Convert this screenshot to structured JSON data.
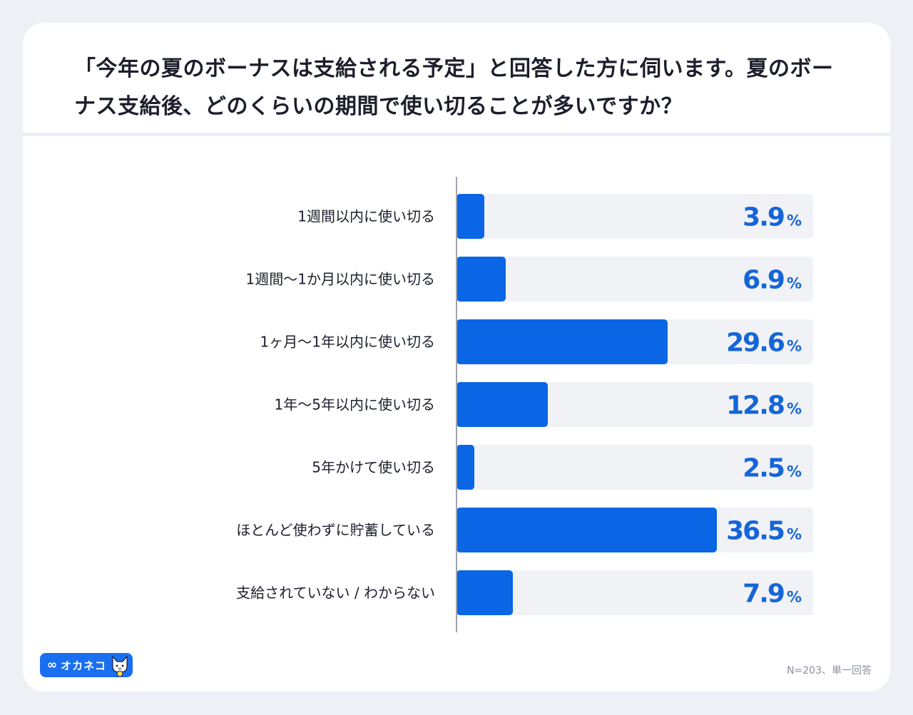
{
  "title": "「今年の夏のボーナスは支給される予定」と回答した方に伺います。夏のボーナス支給後、どのくらいの期間で使い切ることが多いですか？",
  "footnote": "N=203、単一回答",
  "logo": {
    "text": "オカネコ",
    "icon": "infinity-icon",
    "mascot": "cat-mascot-icon"
  },
  "colors": {
    "bar": "#0a66e5",
    "track": "#f1f2f5",
    "value": "#1565d8",
    "axis": "#a0a3ab"
  },
  "chart_data": {
    "type": "bar",
    "orientation": "horizontal",
    "categories": [
      "1週間以内に使い切る",
      "1週間〜1か月以内に使い切る",
      "1ヶ月〜1年以内に使い切る",
      "1年〜5年以内に使い切る",
      "5年かけて使い切る",
      "ほとんど使わずに貯蓄している",
      "支給されていない / わからない"
    ],
    "values": [
      3.9,
      6.9,
      29.6,
      12.8,
      2.5,
      36.5,
      7.9
    ],
    "value_labels": [
      "3.9",
      "6.9",
      "29.6",
      "12.8",
      "2.5",
      "36.5",
      "7.9"
    ],
    "unit": "%",
    "xlim": [
      0,
      50
    ],
    "grid": false,
    "legend": "none"
  }
}
